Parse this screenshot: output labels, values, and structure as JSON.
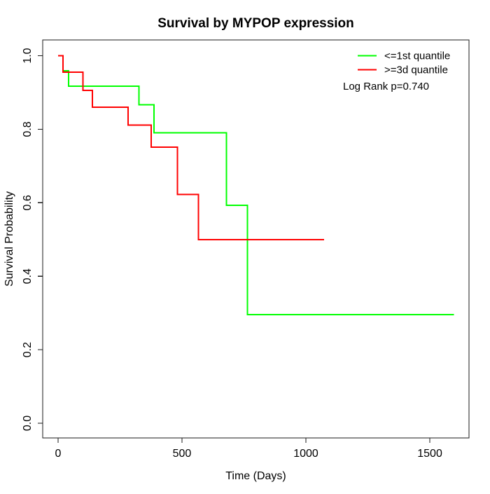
{
  "chart_data": {
    "type": "line",
    "subtype": "kaplan-meier-step",
    "title": "Survival by MYPOP expression",
    "xlabel": "Time (Days)",
    "ylabel": "Survival Probability",
    "xlim": [
      -62,
      1658
    ],
    "ylim": [
      -0.04,
      1.043
    ],
    "grid": false,
    "legend_position": "top-right",
    "annotation": "Log Rank p=0.740",
    "xticks": {
      "values": [
        0,
        500,
        1000,
        1500
      ],
      "labels": [
        "0",
        "500",
        "1000",
        "1500"
      ]
    },
    "yticks": {
      "values": [
        0.0,
        0.2,
        0.4,
        0.6,
        0.8,
        1.0
      ],
      "labels": [
        "0.0",
        "0.2",
        "0.4",
        "0.6",
        "0.8",
        "1.0"
      ]
    },
    "series": [
      {
        "name": "<=1st quantile",
        "color": "#00ff00",
        "x": [
          0,
          20,
          43,
          326,
          387,
          679,
          764,
          1597
        ],
        "y": [
          1.0,
          0.959,
          0.917,
          0.867,
          0.79,
          0.593,
          0.296,
          0.296
        ]
      },
      {
        "name": ">=3d quantile",
        "color": "#ff0000",
        "x": [
          0,
          20,
          100,
          139,
          282,
          376,
          481,
          566,
          1074
        ],
        "y": [
          1.0,
          0.955,
          0.906,
          0.86,
          0.811,
          0.751,
          0.623,
          0.5,
          0.5
        ]
      }
    ]
  }
}
